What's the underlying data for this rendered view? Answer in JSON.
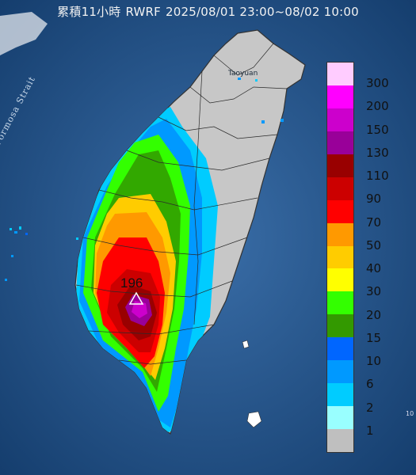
{
  "title": {
    "prefix": "累積11小時",
    "product": "RWRF",
    "time_range": "2025/08/01 23:00~08/02 10:00"
  },
  "labels": {
    "strait": "Formosa Strait",
    "city": "Taoyuan",
    "max_value": "196",
    "corner": "10"
  },
  "legend": {
    "unit": "",
    "levels": [
      {
        "label": "300",
        "color": "#ffccff"
      },
      {
        "label": "200",
        "color": "#ff00ff"
      },
      {
        "label": "150",
        "color": "#cc00cc"
      },
      {
        "label": "130",
        "color": "#990099"
      },
      {
        "label": "110",
        "color": "#990000"
      },
      {
        "label": "90",
        "color": "#cc0000"
      },
      {
        "label": "70",
        "color": "#ff0000"
      },
      {
        "label": "50",
        "color": "#ff9900"
      },
      {
        "label": "40",
        "color": "#ffcc00"
      },
      {
        "label": "30",
        "color": "#ffff00"
      },
      {
        "label": "20",
        "color": "#33ff00"
      },
      {
        "label": "15",
        "color": "#339900"
      },
      {
        "label": "10",
        "color": "#0066ff"
      },
      {
        "label": "6",
        "color": "#0099ff"
      },
      {
        "label": "2",
        "color": "#00ccff"
      },
      {
        "label": "1",
        "color": "#99ffff"
      },
      {
        "label": "",
        "color": "#bfbfbf"
      }
    ]
  },
  "colors": {
    "sea": "#1e4f86",
    "land_no_rain": "#c7c7c7",
    "border": "#2a2a2a"
  }
}
